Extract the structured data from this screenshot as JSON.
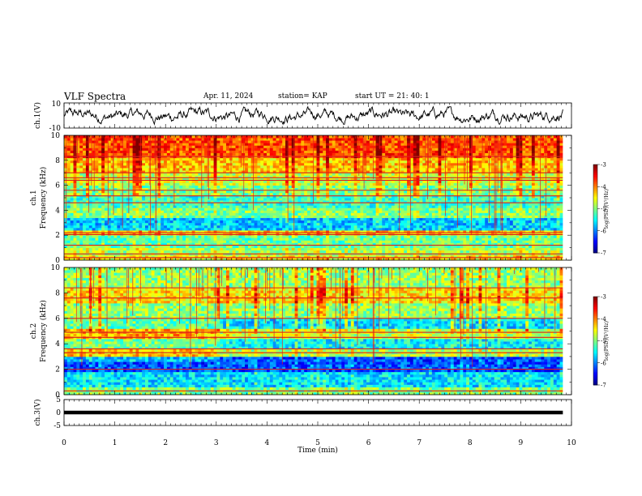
{
  "header": {
    "title": "VLF Spectra",
    "date": "Apr. 11, 2024",
    "station": "station= KAP",
    "start": "start UT =  21: 40: 1"
  },
  "chart_data": [
    {
      "type": "line",
      "panel": "ch1-waveform",
      "ylabel": "ch.1(V)",
      "ylim": [
        -10,
        10
      ],
      "yticks": [
        "10",
        "-10"
      ],
      "xlim": [
        0,
        10
      ],
      "data_end_min": 9.83,
      "note_series": "continuous noisy waveform roughly between -6 and 6 V"
    },
    {
      "type": "heatmap",
      "panel": "ch1-spectrogram",
      "ylabel_line1": "ch.1",
      "ylabel_line2": "Frequency (kHz)",
      "ylim": [
        0,
        10
      ],
      "yticks": [
        "0",
        "2",
        "4",
        "6",
        "8",
        "10"
      ],
      "xlim": [
        0,
        10
      ],
      "data_end_min": 9.83,
      "bands": [
        {
          "from": 0,
          "to": 0.4,
          "level": -4.5
        },
        {
          "from": 0.4,
          "to": 1.1,
          "level": -4.8
        },
        {
          "from": 1.1,
          "to": 2.0,
          "level": -5.1
        },
        {
          "from": 2.0,
          "to": 2.5,
          "level": -4.3
        },
        {
          "from": 2.5,
          "to": 3.5,
          "level": -5.7
        },
        {
          "from": 3.5,
          "to": 4.2,
          "level": -5.0
        },
        {
          "from": 4.2,
          "to": 5.2,
          "level": -5.3
        },
        {
          "from": 5.2,
          "to": 6.0,
          "level": -5.0
        },
        {
          "from": 6.0,
          "to": 7.0,
          "level": -4.7
        },
        {
          "from": 7.0,
          "to": 8.2,
          "level": -4.3
        },
        {
          "from": 8.2,
          "to": 10.0,
          "level": -3.8
        }
      ],
      "lines_khz": [
        0.2,
        0.5,
        1.2,
        2.05,
        2.2,
        4.6,
        5.15,
        5.6,
        6.4,
        6.6,
        7.0,
        8.3
      ],
      "colorbar": {
        "label": "log(PSD)(V²/Hz)",
        "range": [
          -7,
          -3
        ],
        "ticks": [
          "-3",
          "-4",
          "-5",
          "-6",
          "-7"
        ]
      }
    },
    {
      "type": "heatmap",
      "panel": "ch2-spectrogram",
      "ylabel_line1": "ch.2",
      "ylabel_line2": "Frequency (kHz)",
      "ylim": [
        0,
        10
      ],
      "yticks": [
        "0",
        "2",
        "4",
        "6",
        "8",
        "10"
      ],
      "xlim": [
        0,
        10
      ],
      "data_end_min": 9.83,
      "bands": [
        {
          "from": 0,
          "to": 0.6,
          "level": -5.0
        },
        {
          "from": 0.6,
          "to": 1.8,
          "level": -5.6
        },
        {
          "from": 1.8,
          "to": 3.0,
          "level": -6.2
        },
        {
          "from": 3.0,
          "to": 3.6,
          "level": -4.8
        },
        {
          "from": 3.6,
          "to": 4.4,
          "level": -5.5
        },
        {
          "from": 4.4,
          "to": 5.2,
          "level": -4.7
        },
        {
          "from": 5.2,
          "to": 6.0,
          "level": -5.6
        },
        {
          "from": 6.0,
          "to": 7.2,
          "level": -4.9
        },
        {
          "from": 7.2,
          "to": 8.5,
          "level": -4.4
        },
        {
          "from": 8.5,
          "to": 10.0,
          "level": -4.9
        }
      ],
      "step_change_min": 3.0,
      "lines_khz": [
        0.3,
        2.0,
        3.3,
        3.6,
        4.5,
        4.9,
        6.0,
        7.6,
        8.4
      ],
      "colorbar": {
        "label": "log(PSD)(V²/Hz)",
        "range": [
          -7,
          -3
        ],
        "ticks": [
          "-3",
          "-4",
          "-5",
          "-6",
          "-7"
        ]
      }
    },
    {
      "type": "line",
      "panel": "ch3-waveform",
      "ylabel": "ch.3(V)",
      "ylim": [
        -5,
        5
      ],
      "yticks": [
        "5",
        "0",
        "-5"
      ],
      "xlim": [
        0,
        10
      ],
      "data_end_min": 9.83,
      "note_series": "flat saturated trace near 0 V (thick black band)",
      "xlabel": "Time (min)",
      "xticks": [
        "0",
        "1",
        "2",
        "3",
        "4",
        "5",
        "6",
        "7",
        "8",
        "9",
        "10"
      ]
    }
  ]
}
